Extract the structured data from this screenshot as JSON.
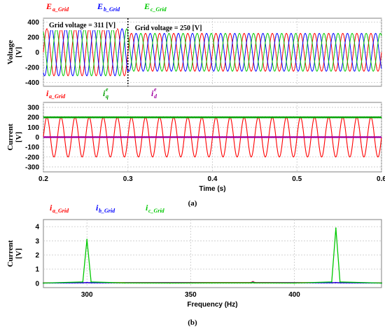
{
  "chart_data": [
    {
      "type": "line",
      "panel": "voltage",
      "ylabel_lines": [
        "Voltage",
        "[V]"
      ],
      "xlim": [
        0.2,
        0.6
      ],
      "ylim": [
        -450,
        450
      ],
      "yticks": [
        400,
        200,
        0,
        -200,
        -400
      ],
      "grid": true,
      "legend": [
        {
          "main": "E",
          "sub": "a_Grid",
          "color": "#ff0000"
        },
        {
          "main": "E",
          "sub": "b_Grid",
          "color": "#0000ff"
        },
        {
          "main": "E",
          "sub": "c_Grid",
          "color": "#00c800"
        }
      ],
      "frequency_hz": 60,
      "switch_time": 0.3,
      "amplitude_before": 311,
      "amplitude_after": 250,
      "annotations": [
        "Grid voltage = 311 [V]",
        "Grid voltage = 250 [V]"
      ],
      "series": [
        {
          "name": "E_a_Grid",
          "color": "#ff0000",
          "phase_deg": 0
        },
        {
          "name": "E_b_Grid",
          "color": "#0000ff",
          "phase_deg": -120
        },
        {
          "name": "E_c_Grid",
          "color": "#00c800",
          "phase_deg": 120
        }
      ]
    },
    {
      "type": "line",
      "panel": "current",
      "ylabel_lines": [
        "Current",
        "[V]"
      ],
      "xlabel": "Time (s)",
      "xlim": [
        0.2,
        0.6
      ],
      "ylim": [
        -350,
        350
      ],
      "xticks": [
        0.2,
        0.3,
        0.4,
        0.5,
        0.6
      ],
      "yticks": [
        300,
        200,
        100,
        0,
        -100,
        -200,
        -300
      ],
      "grid": true,
      "legend": [
        {
          "main": "i",
          "sub": "a_Grid",
          "sup": "",
          "color": "#ff0000"
        },
        {
          "main": "i",
          "sub": "q",
          "sup": "e",
          "color": "#00a000"
        },
        {
          "main": "i",
          "sub": "d",
          "sup": "e",
          "color": "#a000a0"
        }
      ],
      "series": [
        {
          "name": "i_a_Grid",
          "color": "#ff0000",
          "kind": "sine",
          "amplitude": 200,
          "frequency_hz": 60
        },
        {
          "name": "iq_e",
          "color": "#00a000",
          "kind": "constant",
          "value": 200
        },
        {
          "name": "id_e",
          "color": "#a000a0",
          "kind": "constant",
          "value": 0
        }
      ],
      "caption": "(a)"
    },
    {
      "type": "line",
      "panel": "spectrum",
      "ylabel_lines": [
        "Current",
        "[V]"
      ],
      "xlabel": "Frequency (Hz)",
      "xlim": [
        279,
        442
      ],
      "ylim": [
        -0.3,
        4.5
      ],
      "xticks": [
        300,
        350,
        400
      ],
      "yticks": [
        4,
        3,
        2,
        1,
        0
      ],
      "grid": true,
      "legend": [
        {
          "main": "i",
          "sub": "a_Grid",
          "color": "#ff0000"
        },
        {
          "main": "i",
          "sub": "b_Grid",
          "color": "#0000ff"
        },
        {
          "main": "i",
          "sub": "c_Grid",
          "color": "#00c800"
        }
      ],
      "series": [
        {
          "name": "i_a_Grid",
          "color": "#ff0000",
          "x": [
            279,
            298,
            300,
            302,
            379,
            380,
            381,
            418,
            420,
            422,
            442
          ],
          "y": [
            0.03,
            0.05,
            0.05,
            0.05,
            0.06,
            0.12,
            0.06,
            0.05,
            0.05,
            0.05,
            0.03
          ]
        },
        {
          "name": "i_b_Grid",
          "color": "#0000ff",
          "x": [
            279,
            298,
            300,
            302,
            379,
            380,
            381,
            418,
            420,
            422,
            442
          ],
          "y": [
            0.02,
            0.04,
            0.06,
            0.04,
            0.04,
            0.08,
            0.04,
            0.04,
            0.06,
            0.04,
            0.02
          ]
        },
        {
          "name": "i_c_Grid",
          "color": "#00c800",
          "x": [
            279,
            298,
            300,
            302,
            318,
            340,
            360,
            379,
            380,
            381,
            400,
            418,
            420,
            422,
            442
          ],
          "y": [
            0.02,
            0.1,
            3.1,
            0.1,
            0.03,
            0.02,
            0.03,
            0.03,
            0.05,
            0.03,
            0.02,
            0.1,
            3.9,
            0.1,
            0.02
          ]
        }
      ],
      "caption": "(b)"
    }
  ]
}
